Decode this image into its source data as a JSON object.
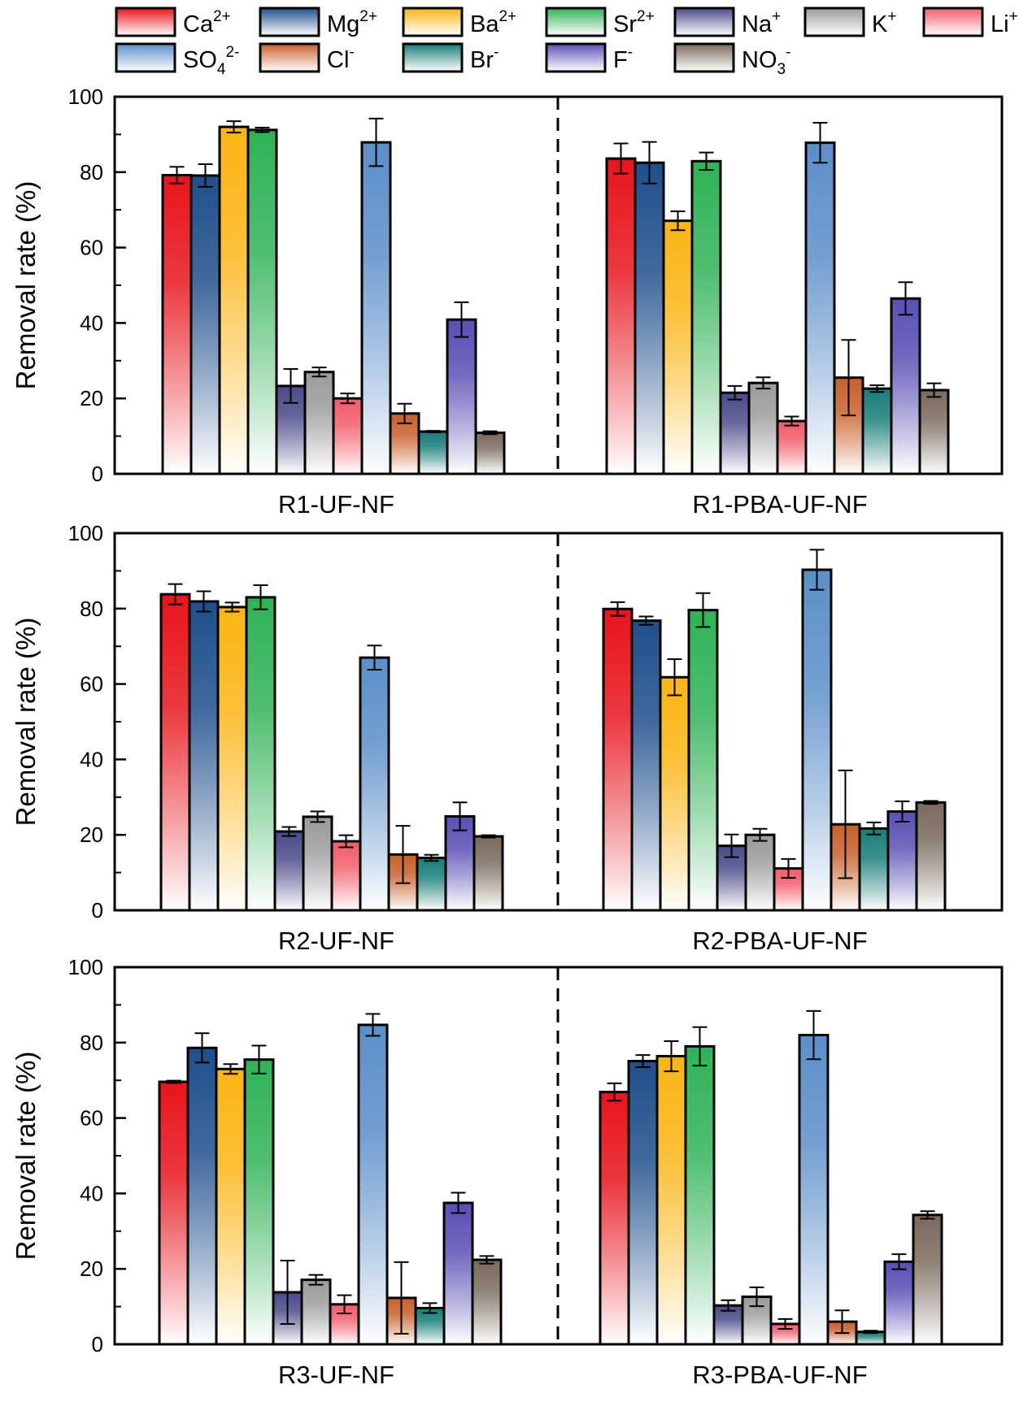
{
  "legend": [
    {
      "key": "Ca",
      "base": "Ca",
      "sup": "2+",
      "sub": "",
      "color": "#e8141c"
    },
    {
      "key": "Mg",
      "base": "Mg",
      "sup": "2+",
      "sub": "",
      "color": "#1f4f8c"
    },
    {
      "key": "Ba",
      "base": "Ba",
      "sup": "2+",
      "sub": "",
      "color": "#fbb514"
    },
    {
      "key": "Sr",
      "base": "Sr",
      "sup": "2+",
      "sub": "",
      "color": "#2fb356"
    },
    {
      "key": "Na",
      "base": "Na",
      "sup": "+",
      "sub": "",
      "color": "#4a4a8a"
    },
    {
      "key": "K",
      "base": "K",
      "sup": "+",
      "sub": "",
      "color": "#9b9b9b"
    },
    {
      "key": "Li",
      "base": "Li",
      "sup": "+",
      "sub": "",
      "color": "#f25c6a"
    },
    {
      "key": "SO4",
      "base": "SO",
      "sup": "2-",
      "sub": "4",
      "color": "#5b8fc9"
    },
    {
      "key": "Cl",
      "base": "Cl",
      "sup": "-",
      "sub": "",
      "color": "#c8602a"
    },
    {
      "key": "Br",
      "base": "Br",
      "sup": "-",
      "sub": "",
      "color": "#177d78"
    },
    {
      "key": "F",
      "base": "F",
      "sup": "-",
      "sub": "",
      "color": "#5a4fb5"
    },
    {
      "key": "NO3",
      "base": "NO",
      "sup": "-",
      "sub": "3",
      "color": "#7a6a5c"
    }
  ],
  "chart_data": [
    {
      "type": "bar",
      "ylabel": "Removal rate (%)",
      "ylim": [
        0,
        100
      ],
      "yticks": [
        "0",
        "20",
        "40",
        "60",
        "80",
        "100"
      ],
      "groups": [
        {
          "label": "R1-UF-NF",
          "order": [
            "Ca",
            "Mg",
            "Ba",
            "Sr",
            "Na",
            "K",
            "Li",
            "SO4",
            "Cl",
            "Br",
            "F",
            "NO3"
          ],
          "values": [
            79.2,
            79.1,
            92.0,
            91.2,
            23.3,
            27.0,
            20.0,
            87.9,
            16.0,
            11.2,
            40.9,
            10.9
          ],
          "errors": [
            2.2,
            3.0,
            1.5,
            0.6,
            4.5,
            1.2,
            1.3,
            6.3,
            2.6,
            0.2,
            4.6,
            0.4
          ]
        },
        {
          "label": "R1-PBA-UF-NF",
          "order": [
            "Ca",
            "Mg",
            "Ba",
            "Sr",
            "Na",
            "K",
            "Li",
            "SO4",
            "Cl",
            "Br",
            "F",
            "NO3"
          ],
          "values": [
            83.6,
            82.5,
            67.1,
            82.9,
            21.5,
            24.1,
            14.0,
            87.8,
            25.5,
            22.6,
            46.5,
            22.2
          ],
          "errors": [
            4.0,
            5.5,
            2.5,
            2.3,
            1.8,
            1.5,
            1.2,
            5.3,
            10.0,
            0.9,
            4.3,
            1.8
          ]
        }
      ]
    },
    {
      "type": "bar",
      "ylabel": "Removal rate (%)",
      "ylim": [
        0,
        100
      ],
      "yticks": [
        "0",
        "20",
        "40",
        "60",
        "80",
        "100"
      ],
      "groups": [
        {
          "label": "R2-UF-NF",
          "order": [
            "Ca",
            "Mg",
            "Ba",
            "Sr",
            "Na",
            "K",
            "Li",
            "SO4",
            "Cl",
            "Br",
            "F",
            "NO3"
          ],
          "values": [
            83.8,
            81.9,
            80.4,
            83.0,
            20.9,
            24.8,
            18.3,
            67.0,
            14.8,
            13.9,
            24.9,
            19.6
          ],
          "errors": [
            2.7,
            2.7,
            1.2,
            3.2,
            1.2,
            1.4,
            1.6,
            3.2,
            7.6,
            0.8,
            3.7,
            0.3
          ]
        },
        {
          "label": "R2-PBA-UF-NF",
          "order": [
            "Ca",
            "Mg",
            "Ba",
            "Sr",
            "Na",
            "K",
            "Li",
            "SO4",
            "Cl",
            "Br",
            "F",
            "NO3"
          ],
          "values": [
            79.9,
            76.8,
            61.8,
            79.6,
            17.1,
            20.0,
            11.1,
            90.3,
            22.8,
            21.7,
            26.2,
            28.6
          ],
          "errors": [
            1.8,
            1.1,
            4.8,
            4.5,
            3.0,
            1.6,
            2.5,
            5.3,
            14.3,
            1.6,
            2.7,
            0.4
          ]
        }
      ]
    },
    {
      "type": "bar",
      "ylabel": "Removal rate (%)",
      "ylim": [
        0,
        100
      ],
      "yticks": [
        "0",
        "20",
        "40",
        "60",
        "80",
        "100"
      ],
      "groups": [
        {
          "label": "R3-UF-NF",
          "order": [
            "Ca",
            "Mg",
            "Ba",
            "Sr",
            "Na",
            "K",
            "Li",
            "SO4",
            "Cl",
            "Br",
            "F",
            "NO3"
          ],
          "values": [
            69.6,
            78.6,
            73.0,
            75.5,
            13.8,
            17.1,
            10.6,
            84.7,
            12.3,
            9.6,
            37.5,
            22.4
          ],
          "errors": [
            0.3,
            3.9,
            1.3,
            3.7,
            8.4,
            1.3,
            2.4,
            2.9,
            9.5,
            1.3,
            2.7,
            1.0
          ]
        },
        {
          "label": "R3-PBA-UF-NF",
          "order": [
            "Ca",
            "Mg",
            "Ba",
            "Sr",
            "Na",
            "K",
            "Li",
            "SO4",
            "Cl",
            "Br",
            "F",
            "NO3"
          ],
          "values": [
            66.9,
            75.1,
            76.4,
            79.0,
            10.3,
            12.6,
            5.4,
            82.0,
            6.0,
            3.3,
            21.9,
            34.3
          ],
          "errors": [
            2.3,
            1.6,
            4.0,
            5.1,
            1.4,
            2.5,
            1.3,
            6.4,
            3.0,
            0.3,
            2.0,
            1.0
          ]
        }
      ]
    }
  ]
}
